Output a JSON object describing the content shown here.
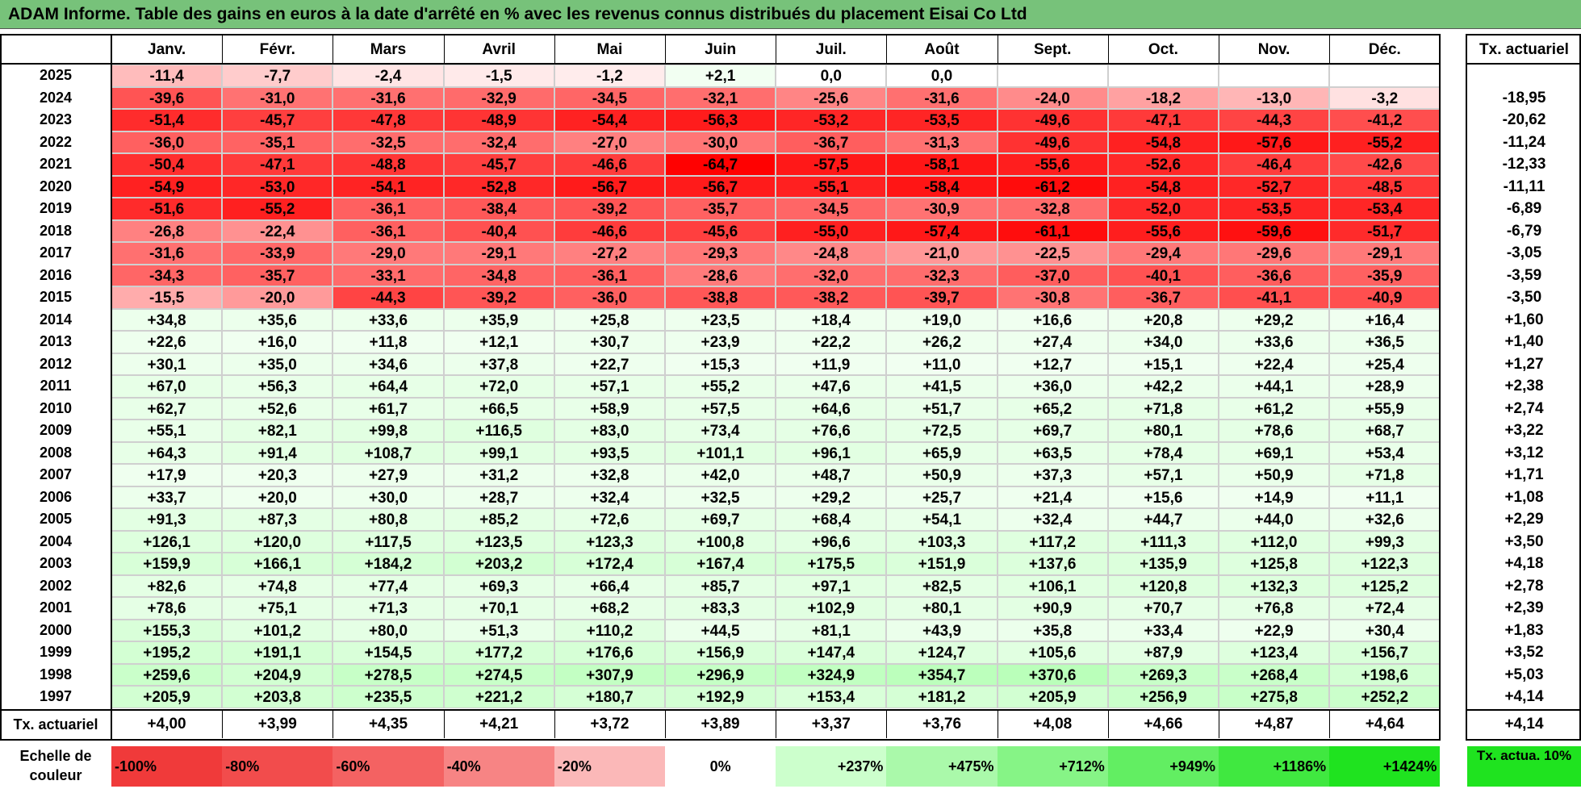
{
  "title": "ADAM Informe. Table des gains en euros à la date d'arrêté en % avec les revenus connus distribués du placement Eisai Co Ltd",
  "chart_data": {
    "type": "heatmap",
    "columns": [
      "Janv.",
      "Févr.",
      "Mars",
      "Avril",
      "Mai",
      "Juin",
      "Juil.",
      "Août",
      "Sept.",
      "Oct.",
      "Nov.",
      "Déc."
    ],
    "rate_header": "Tx. actuariel",
    "rows": [
      {
        "year": "2025",
        "values": [
          "-11,4",
          "-7,7",
          "-2,4",
          "-1,5",
          "-1,2",
          "+2,1",
          "0,0",
          "0,0",
          "",
          "",
          "",
          ""
        ],
        "rate": ""
      },
      {
        "year": "2024",
        "values": [
          "-39,6",
          "-31,0",
          "-31,6",
          "-32,9",
          "-34,5",
          "-32,1",
          "-25,6",
          "-31,6",
          "-24,0",
          "-18,2",
          "-13,0",
          "-3,2"
        ],
        "rate": "-18,95"
      },
      {
        "year": "2023",
        "values": [
          "-51,4",
          "-45,7",
          "-47,8",
          "-48,9",
          "-54,4",
          "-56,3",
          "-53,2",
          "-53,5",
          "-49,6",
          "-47,1",
          "-44,3",
          "-41,2"
        ],
        "rate": "-20,62"
      },
      {
        "year": "2022",
        "values": [
          "-36,0",
          "-35,1",
          "-32,5",
          "-32,4",
          "-27,0",
          "-30,0",
          "-36,7",
          "-31,3",
          "-49,6",
          "-54,8",
          "-57,6",
          "-55,2"
        ],
        "rate": "-11,24"
      },
      {
        "year": "2021",
        "values": [
          "-50,4",
          "-47,1",
          "-48,8",
          "-45,7",
          "-46,6",
          "-64,7",
          "-57,5",
          "-58,1",
          "-55,6",
          "-52,6",
          "-46,4",
          "-42,6"
        ],
        "rate": "-12,33"
      },
      {
        "year": "2020",
        "values": [
          "-54,9",
          "-53,0",
          "-54,1",
          "-52,8",
          "-56,7",
          "-56,7",
          "-55,1",
          "-58,4",
          "-61,2",
          "-54,8",
          "-52,7",
          "-48,5"
        ],
        "rate": "-11,11"
      },
      {
        "year": "2019",
        "values": [
          "-51,6",
          "-55,2",
          "-36,1",
          "-38,4",
          "-39,2",
          "-35,7",
          "-34,5",
          "-30,9",
          "-32,8",
          "-52,0",
          "-53,5",
          "-53,4"
        ],
        "rate": "-6,89"
      },
      {
        "year": "2018",
        "values": [
          "-26,8",
          "-22,4",
          "-36,1",
          "-40,4",
          "-46,6",
          "-45,6",
          "-55,0",
          "-57,4",
          "-61,1",
          "-55,6",
          "-59,6",
          "-51,7"
        ],
        "rate": "-6,79"
      },
      {
        "year": "2017",
        "values": [
          "-31,6",
          "-33,9",
          "-29,0",
          "-29,1",
          "-27,2",
          "-29,3",
          "-24,8",
          "-21,0",
          "-22,5",
          "-29,4",
          "-29,6",
          "-29,1"
        ],
        "rate": "-3,05"
      },
      {
        "year": "2016",
        "values": [
          "-34,3",
          "-35,7",
          "-33,1",
          "-34,8",
          "-36,1",
          "-28,6",
          "-32,0",
          "-32,3",
          "-37,0",
          "-40,1",
          "-36,6",
          "-35,9"
        ],
        "rate": "-3,59"
      },
      {
        "year": "2015",
        "values": [
          "-15,5",
          "-20,0",
          "-44,3",
          "-39,2",
          "-36,0",
          "-38,8",
          "-38,2",
          "-39,7",
          "-30,8",
          "-36,7",
          "-41,1",
          "-40,9"
        ],
        "rate": "-3,50"
      },
      {
        "year": "2014",
        "values": [
          "+34,8",
          "+35,6",
          "+33,6",
          "+35,9",
          "+25,8",
          "+23,5",
          "+18,4",
          "+19,0",
          "+16,6",
          "+20,8",
          "+29,2",
          "+16,4"
        ],
        "rate": "+1,60"
      },
      {
        "year": "2013",
        "values": [
          "+22,6",
          "+16,0",
          "+11,8",
          "+12,1",
          "+30,7",
          "+23,9",
          "+22,2",
          "+26,2",
          "+27,4",
          "+34,0",
          "+33,6",
          "+36,5"
        ],
        "rate": "+1,40"
      },
      {
        "year": "2012",
        "values": [
          "+30,1",
          "+35,0",
          "+34,6",
          "+37,8",
          "+22,7",
          "+15,3",
          "+11,9",
          "+11,0",
          "+12,7",
          "+15,1",
          "+22,4",
          "+25,4"
        ],
        "rate": "+1,27"
      },
      {
        "year": "2011",
        "values": [
          "+67,0",
          "+56,3",
          "+64,4",
          "+72,0",
          "+57,1",
          "+55,2",
          "+47,6",
          "+41,5",
          "+36,0",
          "+42,2",
          "+44,1",
          "+28,9"
        ],
        "rate": "+2,38"
      },
      {
        "year": "2010",
        "values": [
          "+62,7",
          "+52,6",
          "+61,7",
          "+66,5",
          "+58,9",
          "+57,5",
          "+64,6",
          "+51,7",
          "+65,2",
          "+71,8",
          "+61,2",
          "+55,9"
        ],
        "rate": "+2,74"
      },
      {
        "year": "2009",
        "values": [
          "+55,1",
          "+82,1",
          "+99,8",
          "+116,5",
          "+83,0",
          "+73,4",
          "+76,6",
          "+72,5",
          "+69,7",
          "+80,1",
          "+78,6",
          "+68,7"
        ],
        "rate": "+3,22"
      },
      {
        "year": "2008",
        "values": [
          "+64,3",
          "+91,4",
          "+108,7",
          "+99,1",
          "+93,5",
          "+101,1",
          "+96,1",
          "+65,9",
          "+63,5",
          "+78,4",
          "+69,1",
          "+53,4"
        ],
        "rate": "+3,12"
      },
      {
        "year": "2007",
        "values": [
          "+17,9",
          "+20,3",
          "+27,9",
          "+31,2",
          "+32,8",
          "+42,0",
          "+48,7",
          "+50,9",
          "+37,3",
          "+57,1",
          "+50,9",
          "+71,8"
        ],
        "rate": "+1,71"
      },
      {
        "year": "2006",
        "values": [
          "+33,7",
          "+20,0",
          "+30,0",
          "+28,7",
          "+32,4",
          "+32,5",
          "+29,2",
          "+25,7",
          "+21,4",
          "+15,6",
          "+14,9",
          "+11,1"
        ],
        "rate": "+1,08"
      },
      {
        "year": "2005",
        "values": [
          "+91,3",
          "+87,3",
          "+80,8",
          "+85,2",
          "+72,6",
          "+69,7",
          "+68,4",
          "+54,1",
          "+32,4",
          "+44,7",
          "+44,0",
          "+32,6"
        ],
        "rate": "+2,29"
      },
      {
        "year": "2004",
        "values": [
          "+126,1",
          "+120,0",
          "+117,5",
          "+123,5",
          "+123,3",
          "+100,8",
          "+96,6",
          "+103,3",
          "+117,2",
          "+111,3",
          "+112,0",
          "+99,3"
        ],
        "rate": "+3,50"
      },
      {
        "year": "2003",
        "values": [
          "+159,9",
          "+166,1",
          "+184,2",
          "+203,2",
          "+172,4",
          "+167,4",
          "+175,5",
          "+151,9",
          "+137,6",
          "+135,9",
          "+125,8",
          "+122,3"
        ],
        "rate": "+4,18"
      },
      {
        "year": "2002",
        "values": [
          "+82,6",
          "+74,8",
          "+77,4",
          "+69,3",
          "+66,4",
          "+85,7",
          "+97,1",
          "+82,5",
          "+106,1",
          "+120,8",
          "+132,3",
          "+125,2"
        ],
        "rate": "+2,78"
      },
      {
        "year": "2001",
        "values": [
          "+78,6",
          "+75,1",
          "+71,3",
          "+70,1",
          "+68,2",
          "+83,3",
          "+102,9",
          "+80,1",
          "+90,9",
          "+70,7",
          "+76,8",
          "+72,4"
        ],
        "rate": "+2,39"
      },
      {
        "year": "2000",
        "values": [
          "+155,3",
          "+101,2",
          "+80,0",
          "+51,3",
          "+110,2",
          "+44,5",
          "+81,1",
          "+43,9",
          "+35,8",
          "+33,4",
          "+22,9",
          "+30,4"
        ],
        "rate": "+1,83"
      },
      {
        "year": "1999",
        "values": [
          "+195,2",
          "+191,1",
          "+154,5",
          "+177,2",
          "+176,6",
          "+156,9",
          "+147,4",
          "+124,7",
          "+105,6",
          "+87,9",
          "+123,4",
          "+156,7"
        ],
        "rate": "+3,52"
      },
      {
        "year": "1998",
        "values": [
          "+259,6",
          "+204,9",
          "+278,5",
          "+274,5",
          "+307,9",
          "+296,9",
          "+324,9",
          "+354,7",
          "+370,6",
          "+269,3",
          "+268,4",
          "+198,6"
        ],
        "rate": "+5,03"
      },
      {
        "year": "1997",
        "values": [
          "+205,9",
          "+203,8",
          "+235,5",
          "+221,2",
          "+180,7",
          "+192,9",
          "+153,4",
          "+181,2",
          "+205,9",
          "+256,9",
          "+275,8",
          "+252,2"
        ],
        "rate": "+4,14"
      }
    ],
    "footer": {
      "label": "Tx. actuariel",
      "values": [
        "+4,00",
        "+3,99",
        "+4,35",
        "+4,21",
        "+3,72",
        "+3,89",
        "+3,37",
        "+3,76",
        "+4,08",
        "+4,66",
        "+4,87",
        "+4,64"
      ],
      "rate": "+4,14"
    },
    "scale": {
      "label": "Echelle de couleur",
      "stops": [
        {
          "label": "-100%",
          "color": "#f03a3a"
        },
        {
          "label": "-80%",
          "color": "#f24c4c"
        },
        {
          "label": "-60%",
          "color": "#f46262"
        },
        {
          "label": "-40%",
          "color": "#f78484"
        },
        {
          "label": "-20%",
          "color": "#fbb8b8"
        },
        {
          "label": "0%",
          "color": "#ffffff"
        },
        {
          "label": "+237%",
          "color": "#ccffcc"
        },
        {
          "label": "+475%",
          "color": "#aaf9aa"
        },
        {
          "label": "+712%",
          "color": "#86f486"
        },
        {
          "label": "+949%",
          "color": "#62ee62"
        },
        {
          "label": "+1186%",
          "color": "#40e840"
        },
        {
          "label": "+1424%",
          "color": "#1fe31f"
        }
      ],
      "rate_label": "Tx. actua. 10%",
      "rate_color": "#1fe31f"
    }
  }
}
